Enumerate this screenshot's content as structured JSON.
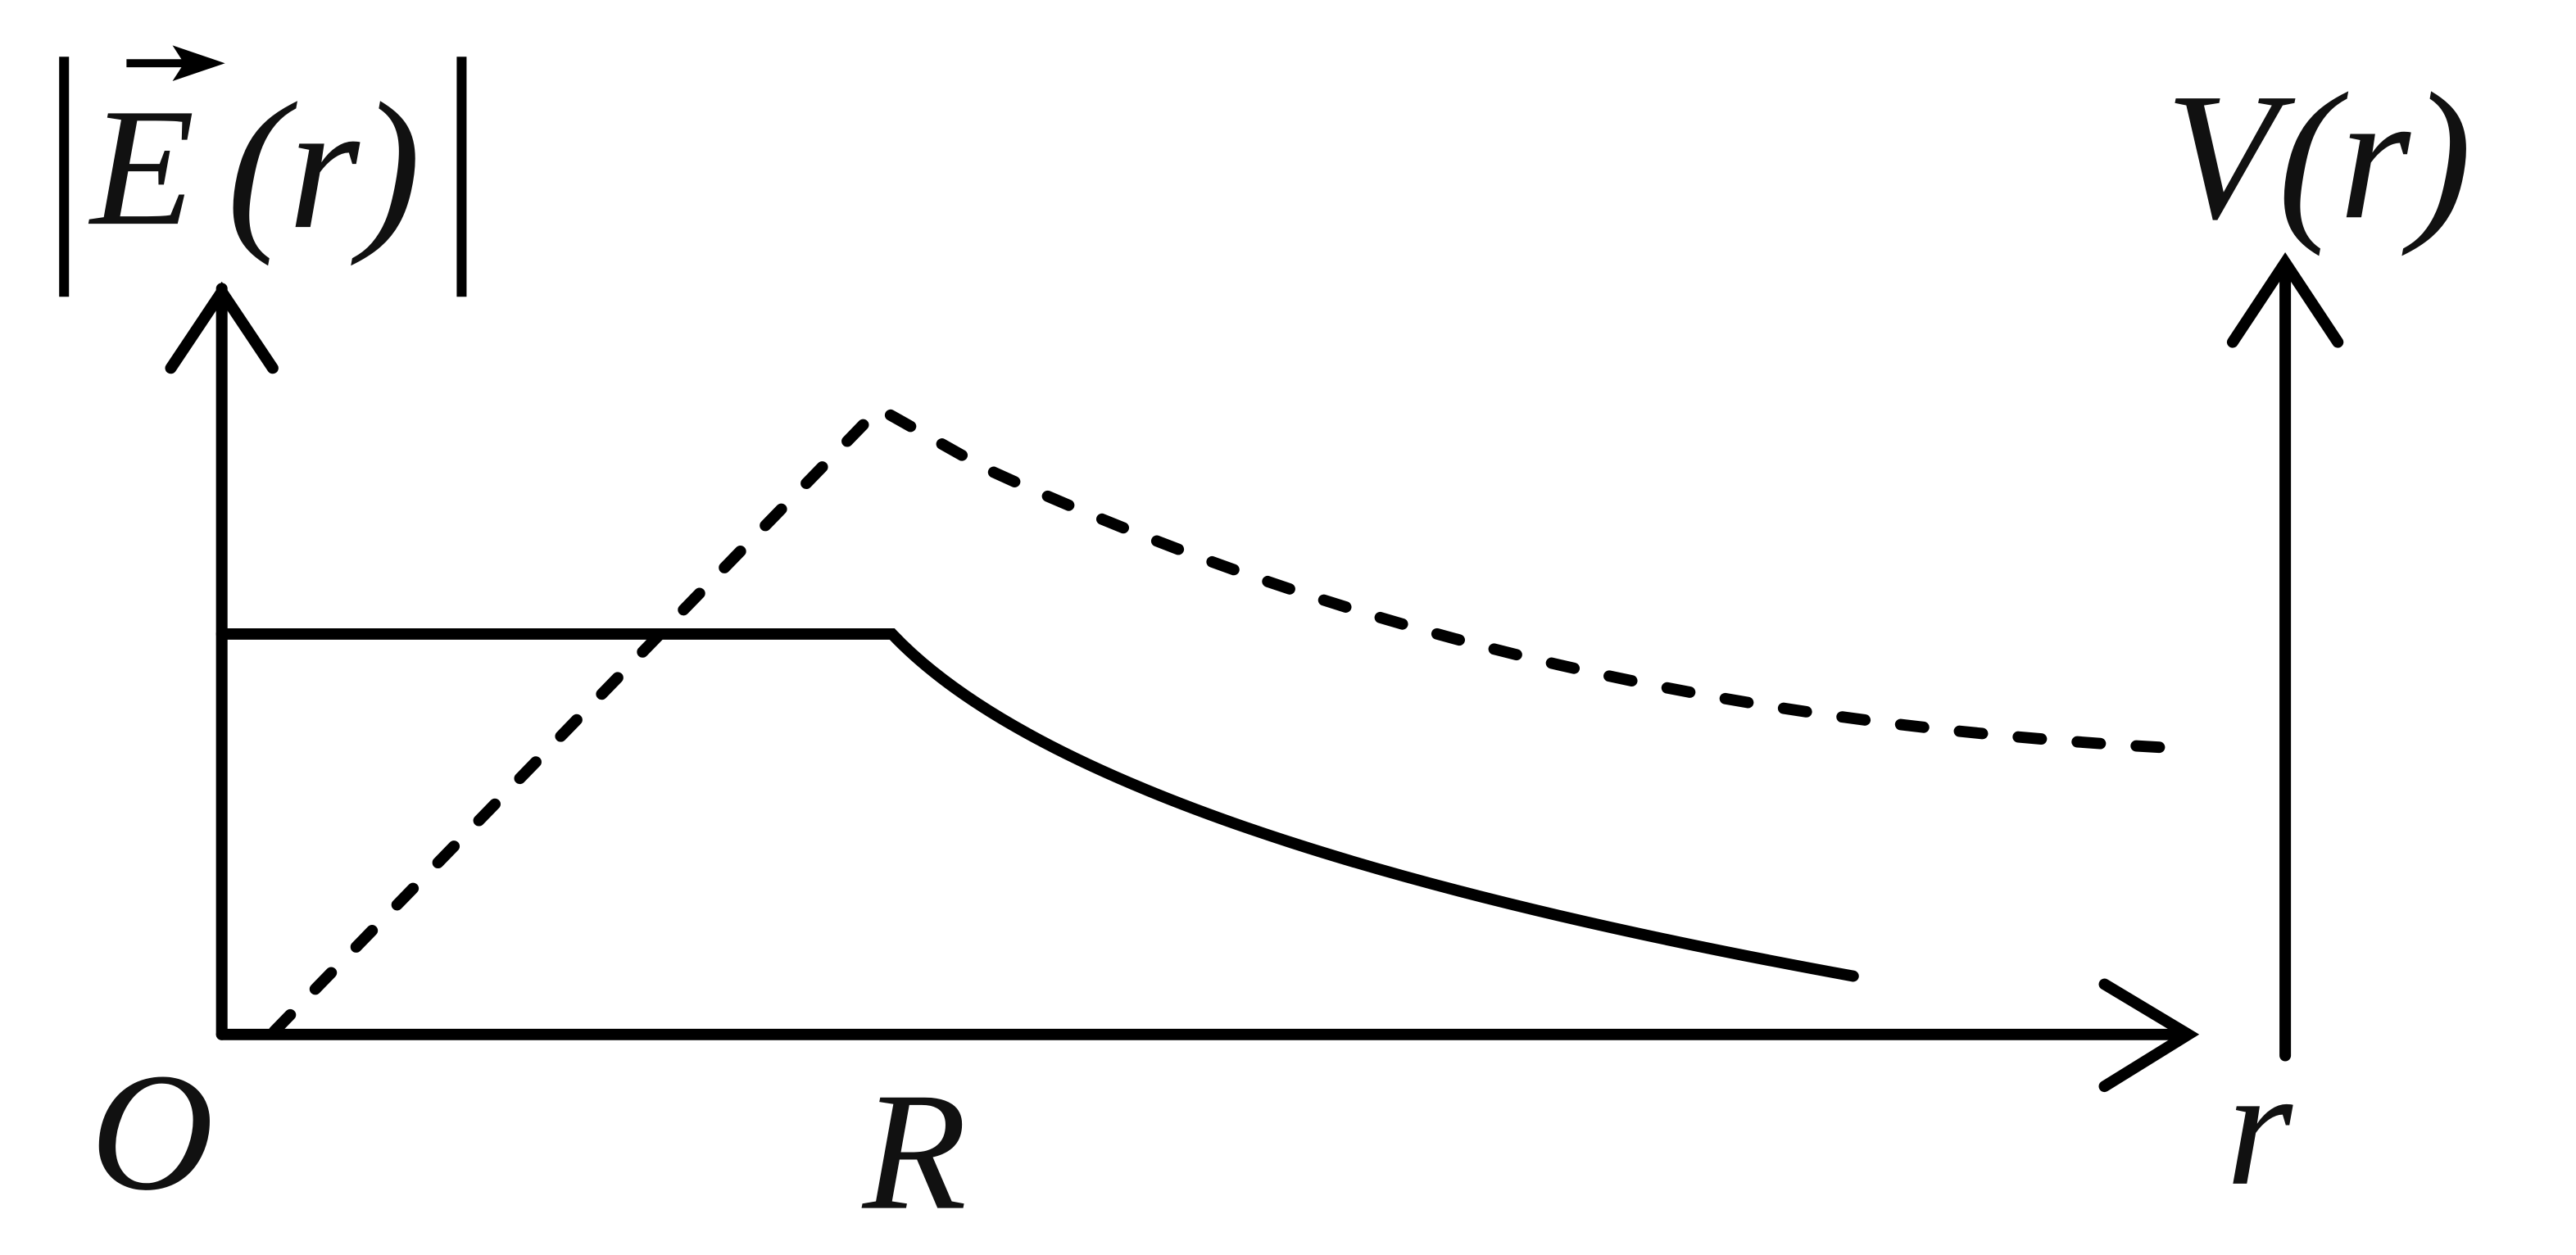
{
  "labels": {
    "e_axis_symbol": "E",
    "e_axis_argument": "(r)",
    "v_axis": "V(r)",
    "origin": "O",
    "radius": "R",
    "r_axis": "r"
  }
}
